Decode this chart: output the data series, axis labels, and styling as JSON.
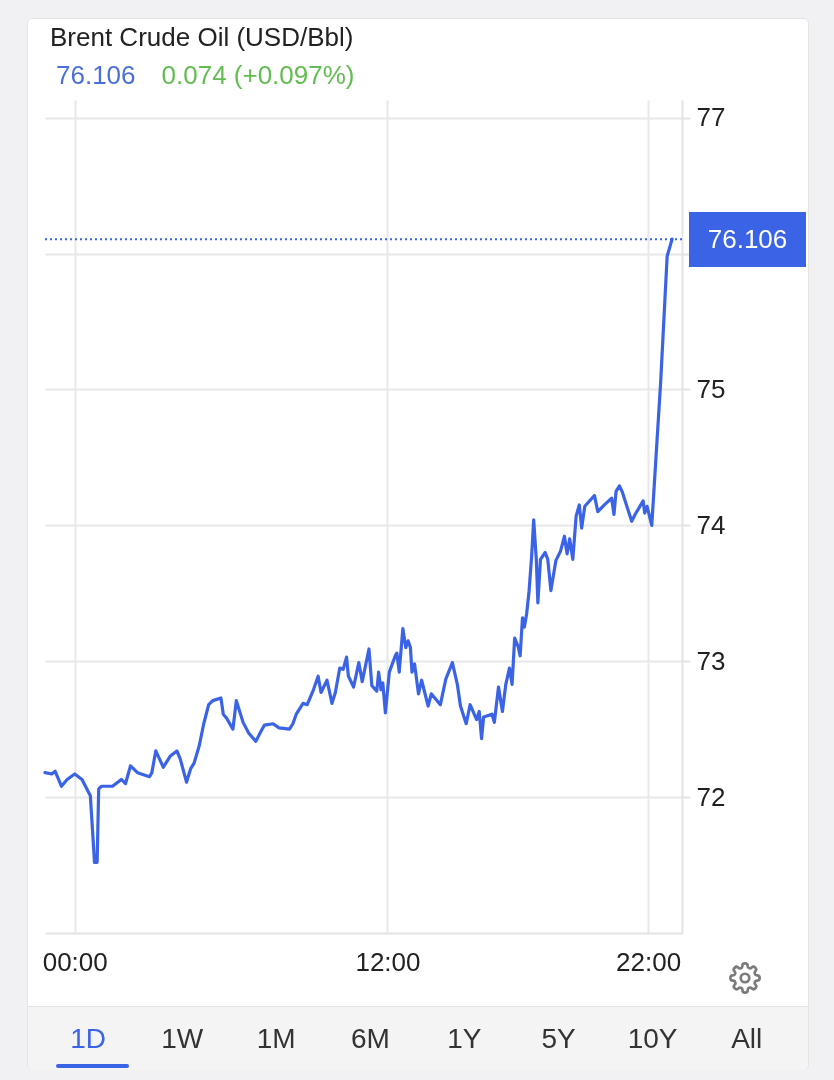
{
  "chart_data": {
    "type": "line",
    "title": "Brent Crude Oil (USD/Bbl)",
    "subtitle": "76.106",
    "annotations": [
      "0.074 (+0.097%)",
      "1D",
      "1W",
      "1M",
      "6M",
      "1Y",
      "5Y",
      "10Y",
      "All"
    ],
    "x": [
      -1.14,
      -0.88,
      -0.75,
      -0.51,
      -0.29,
      0,
      0.28,
      0.6,
      0.76,
      0.86,
      0.92,
      1.03,
      1.45,
      1.79,
      1.95,
      2.14,
      2.41,
      2.87,
      2.96,
      3.11,
      3.4,
      3.66,
      3.92,
      4.05,
      4.29,
      4.45,
      4.58,
      4.78,
      4.95,
      5.14,
      5.3,
      5.61,
      5.7,
      5.83,
      6.07,
      6.2,
      6.46,
      6.68,
      6.95,
      7.08,
      7.28,
      7.61,
      7.84,
      8.24,
      8.37,
      8.5,
      8.76,
      8.92,
      9.16,
      9.34,
      9.45,
      9.68,
      9.87,
      10,
      10.17,
      10.3,
      10.43,
      10.5,
      10.7,
      10.9,
      11.03,
      11.29,
      11.4,
      11.59,
      11.66,
      11.75,
      11.82,
      11.92,
      12.07,
      12.3,
      12.36,
      12.45,
      12.59,
      12.7,
      12.79,
      12.88,
      12.94,
      13.04,
      13.19,
      13.31,
      13.56,
      13.68,
      14.03,
      14.24,
      14.49,
      14.68,
      14.8,
      15.02,
      15.17,
      15.42,
      15.52,
      15.61,
      15.69,
      16.01,
      16.1,
      16.26,
      16.41,
      16.54,
      16.68,
      16.78,
      16.88,
      17.01,
      17.09,
      17.18,
      17.25,
      17.34,
      17.43,
      17.53,
      17.61,
      17.71,
      17.77,
      17.87,
      18.05,
      18.15,
      18.27,
      18.46,
      18.64,
      18.79,
      18.89,
      18.99,
      19.11,
      19.24,
      19.36,
      19.45,
      19.57,
      19.94,
      20.07,
      20.32,
      20.6,
      20.69,
      20.77,
      20.9,
      21,
      21.37,
      21.5,
      21.81,
      21.87,
      21.96,
      22.14,
      22.48,
      22.73,
      22.92
    ],
    "series": [
      {
        "color": "#3b63e6",
        "values": [
          72.18,
          72.17,
          72.19,
          72.08,
          72.13,
          72.17,
          72.13,
          72.01,
          71.52,
          71.52,
          72.06,
          72.08,
          72.08,
          72.13,
          72.1,
          72.23,
          72.18,
          72.15,
          72.18,
          72.34,
          72.22,
          72.3,
          72.34,
          72.28,
          72.11,
          72.21,
          72.25,
          72.38,
          72.54,
          72.68,
          72.71,
          72.73,
          72.61,
          72.58,
          72.5,
          72.71,
          72.55,
          72.47,
          72.41,
          72.46,
          72.53,
          72.54,
          72.51,
          72.5,
          72.54,
          72.61,
          72.69,
          72.68,
          72.79,
          72.89,
          72.77,
          72.86,
          72.69,
          72.77,
          72.95,
          72.94,
          73.03,
          72.89,
          72.81,
          72.99,
          72.85,
          73.09,
          72.82,
          72.78,
          72.92,
          72.79,
          72.84,
          72.62,
          72.92,
          73.04,
          73.06,
          72.92,
          73.24,
          73.1,
          73.15,
          73.1,
          72.92,
          72.98,
          72.76,
          72.86,
          72.67,
          72.76,
          72.68,
          72.87,
          72.99,
          72.83,
          72.67,
          72.54,
          72.68,
          72.57,
          72.63,
          72.43,
          72.59,
          72.61,
          72.55,
          72.81,
          72.63,
          72.83,
          72.95,
          72.83,
          73.17,
          73.11,
          73.04,
          73.32,
          73.25,
          73.35,
          73.51,
          73.77,
          74.04,
          73.75,
          73.43,
          73.75,
          73.8,
          73.75,
          73.52,
          73.74,
          73.81,
          73.92,
          73.79,
          73.9,
          73.75,
          74.07,
          74.15,
          73.98,
          74.14,
          74.22,
          74.1,
          74.15,
          74.2,
          74.08,
          74.25,
          74.29,
          74.25,
          74.03,
          74.08,
          74.18,
          74.09,
          74.14,
          74.0,
          75.05,
          75.98,
          76.106
        ]
      }
    ],
    "xlim": [
      -1.14,
      23.3
    ],
    "xticks": [
      {
        "value": 0,
        "label": "00:00"
      },
      {
        "value": 12,
        "label": "12:00"
      },
      {
        "value": 22,
        "label": "22:00"
      }
    ],
    "ylim": [
      71,
      77.13
    ],
    "yticks": [
      72,
      73,
      74,
      75,
      {
        "value": 76,
        "label": null
      },
      77
    ],
    "grid": true,
    "ref_lines": [
      {
        "axis": "y",
        "value": 76.106,
        "label": "76.106",
        "color": "#3b63e6",
        "line_style": "dotted"
      }
    ]
  }
}
